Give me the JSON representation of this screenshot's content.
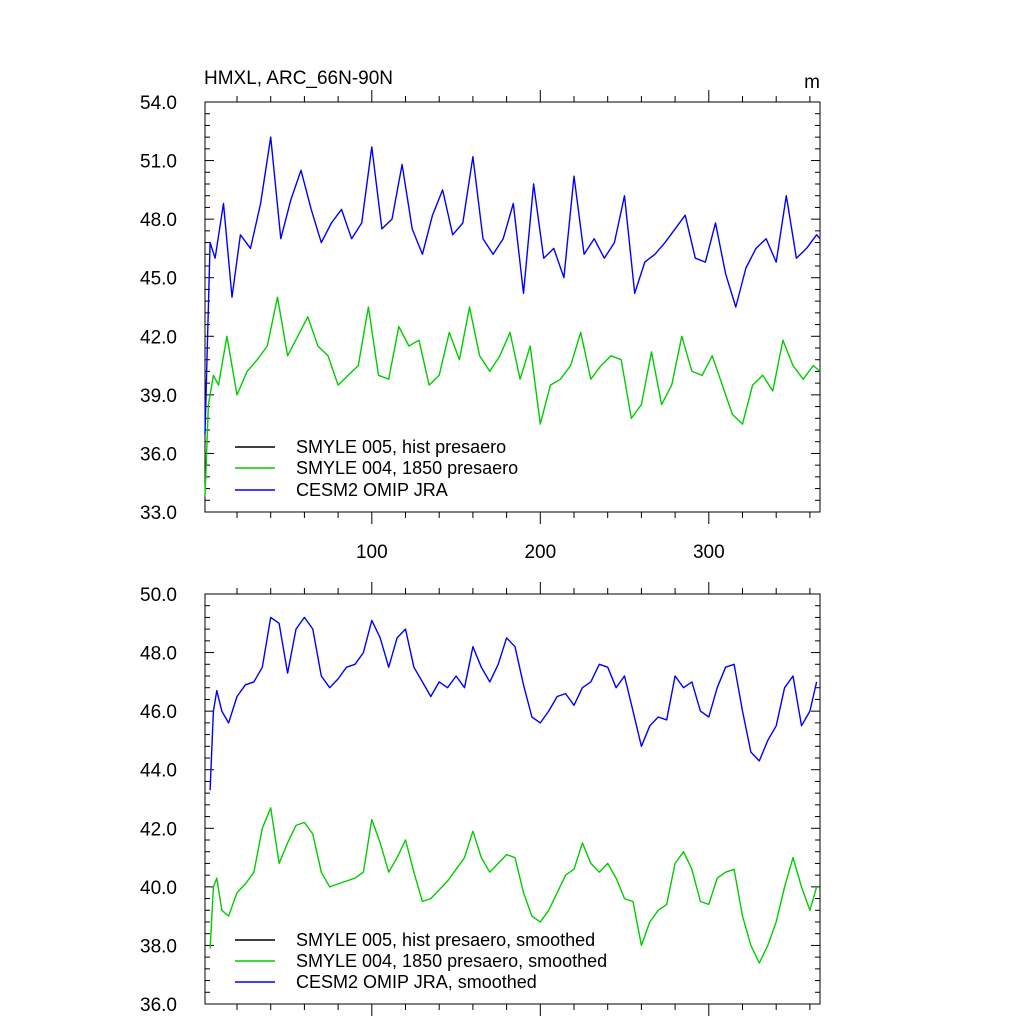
{
  "chart_data": [
    {
      "type": "line",
      "title": "HMXL, ARC_66N-90N",
      "units": "m",
      "xlim": [
        1,
        366
      ],
      "ylim": [
        33.0,
        54.0
      ],
      "xticks": [
        100,
        200,
        300
      ],
      "xtick_labels": [
        "100",
        "200",
        "300"
      ],
      "yticks": [
        33,
        36,
        39,
        42,
        45,
        48,
        51,
        54
      ],
      "ytick_labels": [
        "33.0",
        "36.0",
        "39.0",
        "42.0",
        "45.0",
        "48.0",
        "51.0",
        "54.0"
      ],
      "legend": [
        "SMYLE 005, hist presaero",
        "SMYLE 004, 1850 presaero",
        "CESM2 OMIP JRA"
      ],
      "series": [
        {
          "name": "CESM2 OMIP JRA",
          "color": "#0000ff",
          "x": [
            1,
            4,
            7,
            12,
            17,
            22,
            28,
            34,
            40,
            46,
            52,
            58,
            64,
            70,
            76,
            82,
            88,
            94,
            100,
            106,
            112,
            118,
            124,
            130,
            136,
            142,
            148,
            154,
            160,
            166,
            172,
            178,
            184,
            190,
            196,
            202,
            208,
            214,
            220,
            226,
            232,
            238,
            244,
            250,
            256,
            262,
            268,
            274,
            280,
            286,
            292,
            298,
            304,
            310,
            316,
            322,
            328,
            334,
            340,
            346,
            352,
            358,
            364,
            366
          ],
          "values": [
            37.0,
            46.8,
            46.0,
            48.8,
            44.0,
            47.2,
            46.5,
            48.8,
            52.2,
            47.0,
            49.0,
            50.5,
            48.5,
            46.8,
            47.8,
            48.5,
            47.0,
            47.8,
            51.7,
            47.5,
            48.0,
            50.8,
            47.5,
            46.2,
            48.2,
            49.5,
            47.2,
            47.8,
            51.2,
            47.0,
            46.2,
            47.0,
            48.8,
            44.2,
            49.8,
            46.0,
            46.5,
            45.0,
            50.2,
            46.2,
            47.0,
            46.0,
            46.8,
            49.2,
            44.2,
            45.8,
            46.2,
            46.8,
            47.5,
            48.2,
            46.0,
            45.8,
            47.8,
            45.2,
            43.5,
            45.5,
            46.5,
            47.0,
            45.8,
            49.2,
            46.0,
            46.5,
            47.2,
            47.0
          ]
        },
        {
          "name": "SMYLE 004, 1850 presaero",
          "color": "#00cc00",
          "x": [
            1,
            3,
            6,
            9,
            14,
            20,
            26,
            32,
            38,
            44,
            50,
            56,
            62,
            68,
            74,
            80,
            86,
            92,
            98,
            104,
            110,
            116,
            122,
            128,
            134,
            140,
            146,
            152,
            158,
            164,
            170,
            176,
            182,
            188,
            194,
            200,
            206,
            212,
            218,
            224,
            230,
            236,
            242,
            248,
            254,
            260,
            266,
            272,
            278,
            284,
            290,
            296,
            302,
            308,
            314,
            320,
            326,
            332,
            338,
            344,
            350,
            356,
            362,
            366
          ],
          "values": [
            33.8,
            38.5,
            40.0,
            39.5,
            42.0,
            39.0,
            40.2,
            40.8,
            41.5,
            44.0,
            41.0,
            42.0,
            43.0,
            41.5,
            41.0,
            39.5,
            40.0,
            40.5,
            43.5,
            40.0,
            39.8,
            42.5,
            41.5,
            41.8,
            39.5,
            40.0,
            42.2,
            40.8,
            43.5,
            41.0,
            40.2,
            41.0,
            42.2,
            39.8,
            41.5,
            37.5,
            39.5,
            39.8,
            40.5,
            42.2,
            39.8,
            40.5,
            41.0,
            40.8,
            37.8,
            38.5,
            41.2,
            38.5,
            39.5,
            42.0,
            40.2,
            40.0,
            41.0,
            39.5,
            38.0,
            37.5,
            39.5,
            40.0,
            39.2,
            41.8,
            40.5,
            39.8,
            40.5,
            40.2
          ]
        }
      ]
    },
    {
      "type": "line",
      "title": "",
      "xlim": [
        1,
        366
      ],
      "ylim": [
        36.0,
        50.0
      ],
      "xticks": [
        100,
        200,
        300
      ],
      "yticks": [
        36,
        38,
        40,
        42,
        44,
        46,
        48,
        50
      ],
      "ytick_labels": [
        "36.0",
        "38.0",
        "40.0",
        "42.0",
        "44.0",
        "46.0",
        "48.0",
        "50.0"
      ],
      "legend": [
        "SMYLE 005, hist presaero, smoothed",
        "SMYLE 004, 1850 presaero, smoothed",
        "CESM2 OMIP JRA, smoothed"
      ],
      "series": [
        {
          "name": "CESM2 OMIP JRA, smoothed",
          "color": "#0000ff",
          "x": [
            4,
            6,
            8,
            11,
            15,
            20,
            25,
            30,
            35,
            40,
            45,
            50,
            55,
            60,
            65,
            70,
            75,
            80,
            85,
            90,
            95,
            100,
            105,
            110,
            115,
            120,
            125,
            130,
            135,
            140,
            145,
            150,
            155,
            160,
            165,
            170,
            175,
            180,
            185,
            190,
            195,
            200,
            205,
            210,
            215,
            220,
            225,
            230,
            235,
            240,
            245,
            250,
            255,
            260,
            265,
            270,
            275,
            280,
            285,
            290,
            295,
            300,
            305,
            310,
            315,
            320,
            325,
            330,
            335,
            340,
            345,
            350,
            355,
            360,
            364
          ],
          "values": [
            43.3,
            46.0,
            46.7,
            46.0,
            45.6,
            46.5,
            46.9,
            47.0,
            47.5,
            49.2,
            49.0,
            47.3,
            48.8,
            49.2,
            48.8,
            47.2,
            46.8,
            47.1,
            47.5,
            47.6,
            48.0,
            49.1,
            48.5,
            47.5,
            48.5,
            48.8,
            47.5,
            47.0,
            46.5,
            47.0,
            46.8,
            47.2,
            46.8,
            48.2,
            47.5,
            47.0,
            47.6,
            48.5,
            48.2,
            46.9,
            45.8,
            45.6,
            46.0,
            46.5,
            46.6,
            46.2,
            46.8,
            47.0,
            47.6,
            47.5,
            46.8,
            47.2,
            46.0,
            44.8,
            45.5,
            45.8,
            45.7,
            47.2,
            46.8,
            47.0,
            46.0,
            45.8,
            46.8,
            47.5,
            47.6,
            46.0,
            44.6,
            44.3,
            45.0,
            45.5,
            46.8,
            47.2,
            45.5,
            46.0,
            47.0
          ]
        },
        {
          "name": "SMYLE 004, 1850 presaero, smoothed",
          "color": "#00cc00",
          "x": [
            4,
            6,
            8,
            11,
            15,
            20,
            25,
            30,
            35,
            40,
            45,
            50,
            55,
            60,
            65,
            70,
            75,
            80,
            85,
            90,
            95,
            100,
            105,
            110,
            115,
            120,
            125,
            130,
            135,
            140,
            145,
            150,
            155,
            160,
            165,
            170,
            175,
            180,
            185,
            190,
            195,
            200,
            205,
            210,
            215,
            220,
            225,
            230,
            235,
            240,
            245,
            250,
            255,
            260,
            265,
            270,
            275,
            280,
            285,
            290,
            295,
            300,
            305,
            310,
            315,
            320,
            325,
            330,
            335,
            340,
            345,
            350,
            355,
            360,
            364
          ],
          "values": [
            37.9,
            40.0,
            40.3,
            39.2,
            39.0,
            39.8,
            40.1,
            40.5,
            42.0,
            42.7,
            40.8,
            41.5,
            42.1,
            42.2,
            41.8,
            40.5,
            40.0,
            40.1,
            40.2,
            40.3,
            40.5,
            42.3,
            41.5,
            40.5,
            41.0,
            41.6,
            40.5,
            39.5,
            39.6,
            39.9,
            40.2,
            40.6,
            41.0,
            41.9,
            41.0,
            40.5,
            40.8,
            41.1,
            41.0,
            39.8,
            39.0,
            38.8,
            39.2,
            39.8,
            40.4,
            40.6,
            41.5,
            40.8,
            40.5,
            40.8,
            40.3,
            39.6,
            39.5,
            38.0,
            38.8,
            39.2,
            39.4,
            40.8,
            41.2,
            40.6,
            39.5,
            39.4,
            40.3,
            40.5,
            40.6,
            39.0,
            38.0,
            37.4,
            38.0,
            38.8,
            40.0,
            41.0,
            40.0,
            39.2,
            40.0
          ]
        }
      ]
    }
  ]
}
